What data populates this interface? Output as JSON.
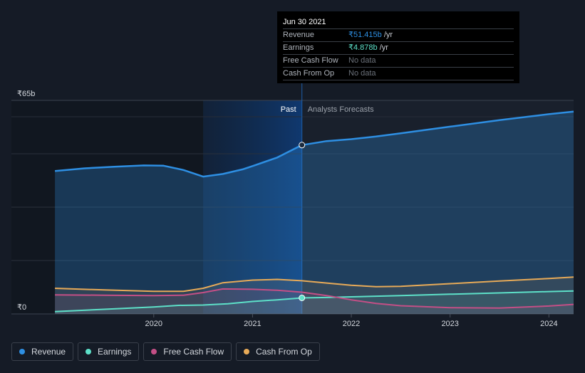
{
  "chart_data": {
    "type": "area",
    "currency_prefix": "₹",
    "y_unit": "billion INR",
    "ylim": [
      0,
      65
    ],
    "y_tick_labels": [
      {
        "value": 65,
        "label": "₹65b"
      },
      {
        "value": 0,
        "label": "₹0"
      }
    ],
    "x_ticks": [
      {
        "t": 2020.0,
        "label": "2020"
      },
      {
        "t": 2021.0,
        "label": "2021"
      },
      {
        "t": 2022.0,
        "label": "2022"
      },
      {
        "t": 2023.0,
        "label": "2023"
      },
      {
        "t": 2024.0,
        "label": "2024"
      }
    ],
    "xlim": [
      2018.79,
      2024.25
    ],
    "past_label": "Past",
    "forecast_label": "Analysts Forecasts",
    "present_t": 2021.5,
    "shaded_start_t": 2020.5,
    "grid": true,
    "legend_position": "bottom",
    "series": [
      {
        "name": "Revenue",
        "color": "#2e8fe3",
        "fill": true,
        "points": [
          [
            2019.0,
            43.5
          ],
          [
            2019.3,
            44.3
          ],
          [
            2019.6,
            44.8
          ],
          [
            2019.9,
            45.2
          ],
          [
            2020.1,
            45.1
          ],
          [
            2020.3,
            43.8
          ],
          [
            2020.5,
            41.8
          ],
          [
            2020.7,
            42.6
          ],
          [
            2020.9,
            44.0
          ],
          [
            2021.0,
            45.0
          ],
          [
            2021.25,
            47.6
          ],
          [
            2021.5,
            51.4
          ],
          [
            2021.75,
            52.6
          ],
          [
            2022.0,
            53.2
          ],
          [
            2022.25,
            54.0
          ],
          [
            2022.5,
            55.0
          ],
          [
            2023.0,
            57.0
          ],
          [
            2023.5,
            59.0
          ],
          [
            2024.0,
            60.8
          ],
          [
            2024.25,
            61.6
          ]
        ]
      },
      {
        "name": "Earnings",
        "color": "#5de0c8",
        "points": [
          [
            2019.0,
            0.7
          ],
          [
            2019.5,
            1.4
          ],
          [
            2020.0,
            2.1
          ],
          [
            2020.25,
            2.6
          ],
          [
            2020.5,
            2.7
          ],
          [
            2020.75,
            3.1
          ],
          [
            2021.0,
            3.8
          ],
          [
            2021.25,
            4.3
          ],
          [
            2021.5,
            4.878
          ],
          [
            2021.75,
            5.0
          ],
          [
            2022.0,
            5.2
          ],
          [
            2022.5,
            5.6
          ],
          [
            2023.0,
            6.0
          ],
          [
            2023.5,
            6.4
          ],
          [
            2024.0,
            6.8
          ],
          [
            2024.25,
            7.0
          ]
        ]
      },
      {
        "name": "Free Cash Flow",
        "color": "#c44f86",
        "points": [
          [
            2019.0,
            5.8
          ],
          [
            2019.5,
            5.7
          ],
          [
            2020.0,
            5.6
          ],
          [
            2020.3,
            5.7
          ],
          [
            2020.5,
            6.5
          ],
          [
            2020.7,
            7.6
          ],
          [
            2021.0,
            7.5
          ],
          [
            2021.25,
            7.2
          ],
          [
            2021.5,
            6.6
          ],
          [
            2021.75,
            5.6
          ],
          [
            2022.0,
            4.3
          ],
          [
            2022.25,
            3.2
          ],
          [
            2022.5,
            2.5
          ],
          [
            2023.0,
            1.9
          ],
          [
            2023.5,
            1.8
          ],
          [
            2024.0,
            2.4
          ],
          [
            2024.25,
            2.9
          ]
        ]
      },
      {
        "name": "Cash From Op",
        "color": "#e7aa58",
        "points": [
          [
            2019.0,
            7.8
          ],
          [
            2019.5,
            7.3
          ],
          [
            2020.0,
            6.9
          ],
          [
            2020.3,
            6.9
          ],
          [
            2020.5,
            7.8
          ],
          [
            2020.7,
            9.5
          ],
          [
            2021.0,
            10.3
          ],
          [
            2021.25,
            10.5
          ],
          [
            2021.5,
            10.1
          ],
          [
            2021.75,
            9.4
          ],
          [
            2022.0,
            8.7
          ],
          [
            2022.25,
            8.3
          ],
          [
            2022.5,
            8.4
          ],
          [
            2023.0,
            9.2
          ],
          [
            2023.5,
            10.0
          ],
          [
            2024.0,
            10.8
          ],
          [
            2024.25,
            11.2
          ]
        ]
      }
    ]
  },
  "tooltip": {
    "date": "Jun 30 2021",
    "rows": [
      {
        "label": "Revenue",
        "value": "₹51.415b",
        "unit": " /yr",
        "color": "#2e8fe3"
      },
      {
        "label": "Earnings",
        "value": "₹4.878b",
        "unit": " /yr",
        "color": "#5de0c8"
      },
      {
        "label": "Free Cash Flow",
        "value": "No data",
        "unit": "",
        "color": "#6b717a"
      },
      {
        "label": "Cash From Op",
        "value": "No data",
        "unit": "",
        "color": "#6b717a"
      }
    ]
  },
  "legend": [
    {
      "label": "Revenue",
      "color": "#2e8fe3"
    },
    {
      "label": "Earnings",
      "color": "#5de0c8"
    },
    {
      "label": "Free Cash Flow",
      "color": "#c44f86"
    },
    {
      "label": "Cash From Op",
      "color": "#e7aa58"
    }
  ]
}
